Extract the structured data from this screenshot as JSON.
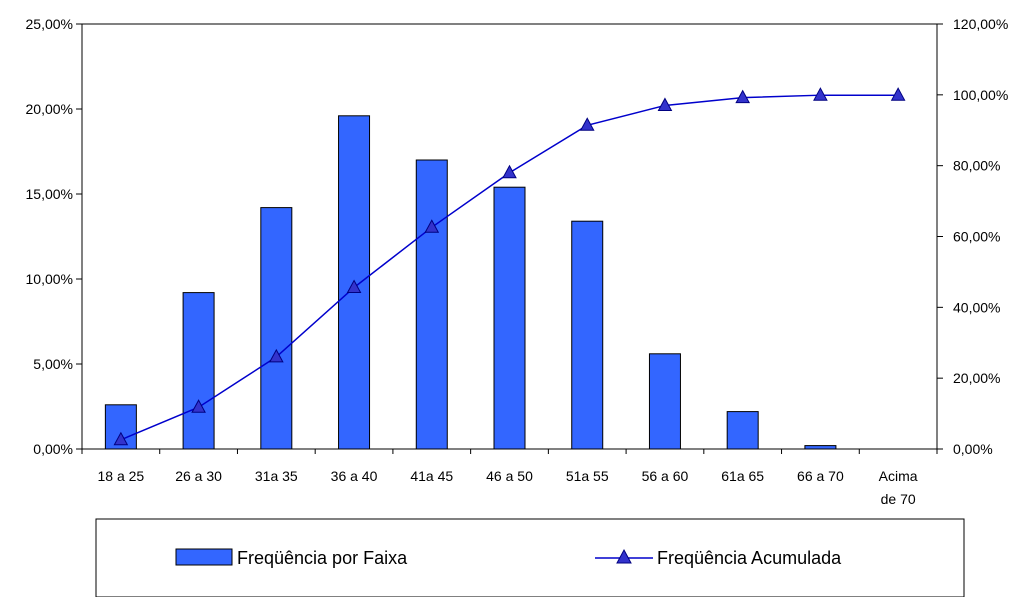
{
  "chart_data": {
    "type": "bar",
    "categories": [
      "18 a 25",
      "26 a 30",
      "31a 35",
      "36 a 40",
      "41a 45",
      "46 a 50",
      "51a 55",
      "56 a 60",
      "61a 65",
      "66 a 70",
      "Acima de 70"
    ],
    "category_lines": [
      [
        "18 a 25"
      ],
      [
        "26 a 30"
      ],
      [
        "31a 35"
      ],
      [
        "36 a 40"
      ],
      [
        "41a 45"
      ],
      [
        "46 a 50"
      ],
      [
        "51a 55"
      ],
      [
        "56 a 60"
      ],
      [
        "61a 65"
      ],
      [
        "66 a 70"
      ],
      [
        "Acima",
        "de 70"
      ]
    ],
    "series": [
      {
        "name": "Freqüência por Faixa",
        "type": "bar",
        "axis": "left",
        "values": [
          2.6,
          9.2,
          14.2,
          19.6,
          17.0,
          15.4,
          13.4,
          5.6,
          2.2,
          0.2,
          0.0
        ]
      },
      {
        "name": "Freqüência Acumulada",
        "type": "line",
        "axis": "right",
        "marker": "triangle",
        "values": [
          2.6,
          11.8,
          26.0,
          45.6,
          62.6,
          78.0,
          91.4,
          97.0,
          99.2,
          99.9,
          99.9
        ]
      }
    ],
    "y_left": {
      "range": [
        0,
        25
      ],
      "ticks": [
        0,
        5,
        10,
        15,
        20,
        25
      ],
      "tick_labels": [
        "0,00%",
        "5,00%",
        "10,00%",
        "15,00%",
        "20,00%",
        "25,00%"
      ]
    },
    "y_right": {
      "range": [
        0,
        120
      ],
      "ticks": [
        0,
        20,
        40,
        60,
        80,
        100,
        120
      ],
      "tick_labels": [
        "0,00%",
        "20,00%",
        "40,00%",
        "60,00%",
        "80,00%",
        "100,00%",
        "120,00%"
      ]
    },
    "grid": false,
    "legend_position": "bottom",
    "colors": {
      "bar_fill": "#3366ff",
      "bar_stroke": "#000000",
      "line": "#0000cc",
      "marker_fill": "#3333cc"
    }
  }
}
